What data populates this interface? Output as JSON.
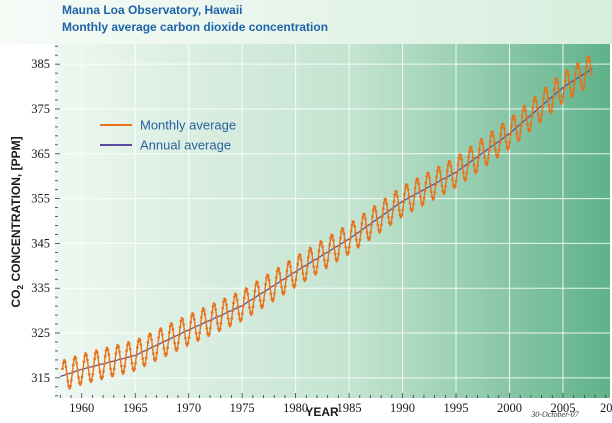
{
  "chart_data": {
    "type": "line",
    "title": "Mauna Loa Observatory, Hawaii",
    "subtitle": "Monthly average carbon dioxide concentration",
    "xlabel": "YEAR",
    "ylabel_main": "CO",
    "ylabel_sub": "2",
    "ylabel_rest": " CONCENTRATION, [PPM]",
    "xlim": [
      1957.5,
      2009.4
    ],
    "ylim": [
      310.5,
      389.5
    ],
    "x_ticks": [
      1960,
      1965,
      1970,
      1975,
      1980,
      1985,
      1990,
      1995,
      2000,
      2005
    ],
    "x_tick_labels": [
      "1960",
      "1965",
      "1970",
      "1975",
      "1980",
      "1985",
      "1990",
      "1995",
      "2000",
      "2005"
    ],
    "x_edge_label": "20",
    "y_ticks": [
      315,
      325,
      335,
      345,
      355,
      365,
      375,
      385
    ],
    "y_tick_labels": [
      "315",
      "325",
      "335",
      "345",
      "355",
      "365",
      "375",
      "385"
    ],
    "grid": true,
    "legend_position": "upper-left",
    "date_note": "30-October-07",
    "series": [
      {
        "name": "Monthly average",
        "color": "#e8731c",
        "x_start": 1958.2,
        "x_end": 2007.75,
        "step": 0.0833,
        "trend": [
          [
            1958,
            315.3
          ],
          [
            1960,
            316.9
          ],
          [
            1965,
            320.0
          ],
          [
            1970,
            325.7
          ],
          [
            1975,
            331.1
          ],
          [
            1980,
            338.7
          ],
          [
            1985,
            346.0
          ],
          [
            1990,
            354.4
          ],
          [
            1995,
            360.9
          ],
          [
            2000,
            369.5
          ],
          [
            2005,
            379.8
          ],
          [
            2007.75,
            384.0
          ]
        ],
        "seasonal_amplitude": 3.3,
        "seasonal_peak_month": "May"
      },
      {
        "name": "Annual average",
        "color": "#5a4aa0",
        "values": [
          [
            1958,
            315.3
          ],
          [
            1960,
            316.9
          ],
          [
            1965,
            320.0
          ],
          [
            1970,
            325.7
          ],
          [
            1975,
            331.1
          ],
          [
            1980,
            338.7
          ],
          [
            1985,
            346.0
          ],
          [
            1990,
            354.4
          ],
          [
            1995,
            360.9
          ],
          [
            2000,
            369.5
          ],
          [
            2005,
            379.8
          ],
          [
            2007.75,
            384.0
          ]
        ]
      }
    ]
  }
}
